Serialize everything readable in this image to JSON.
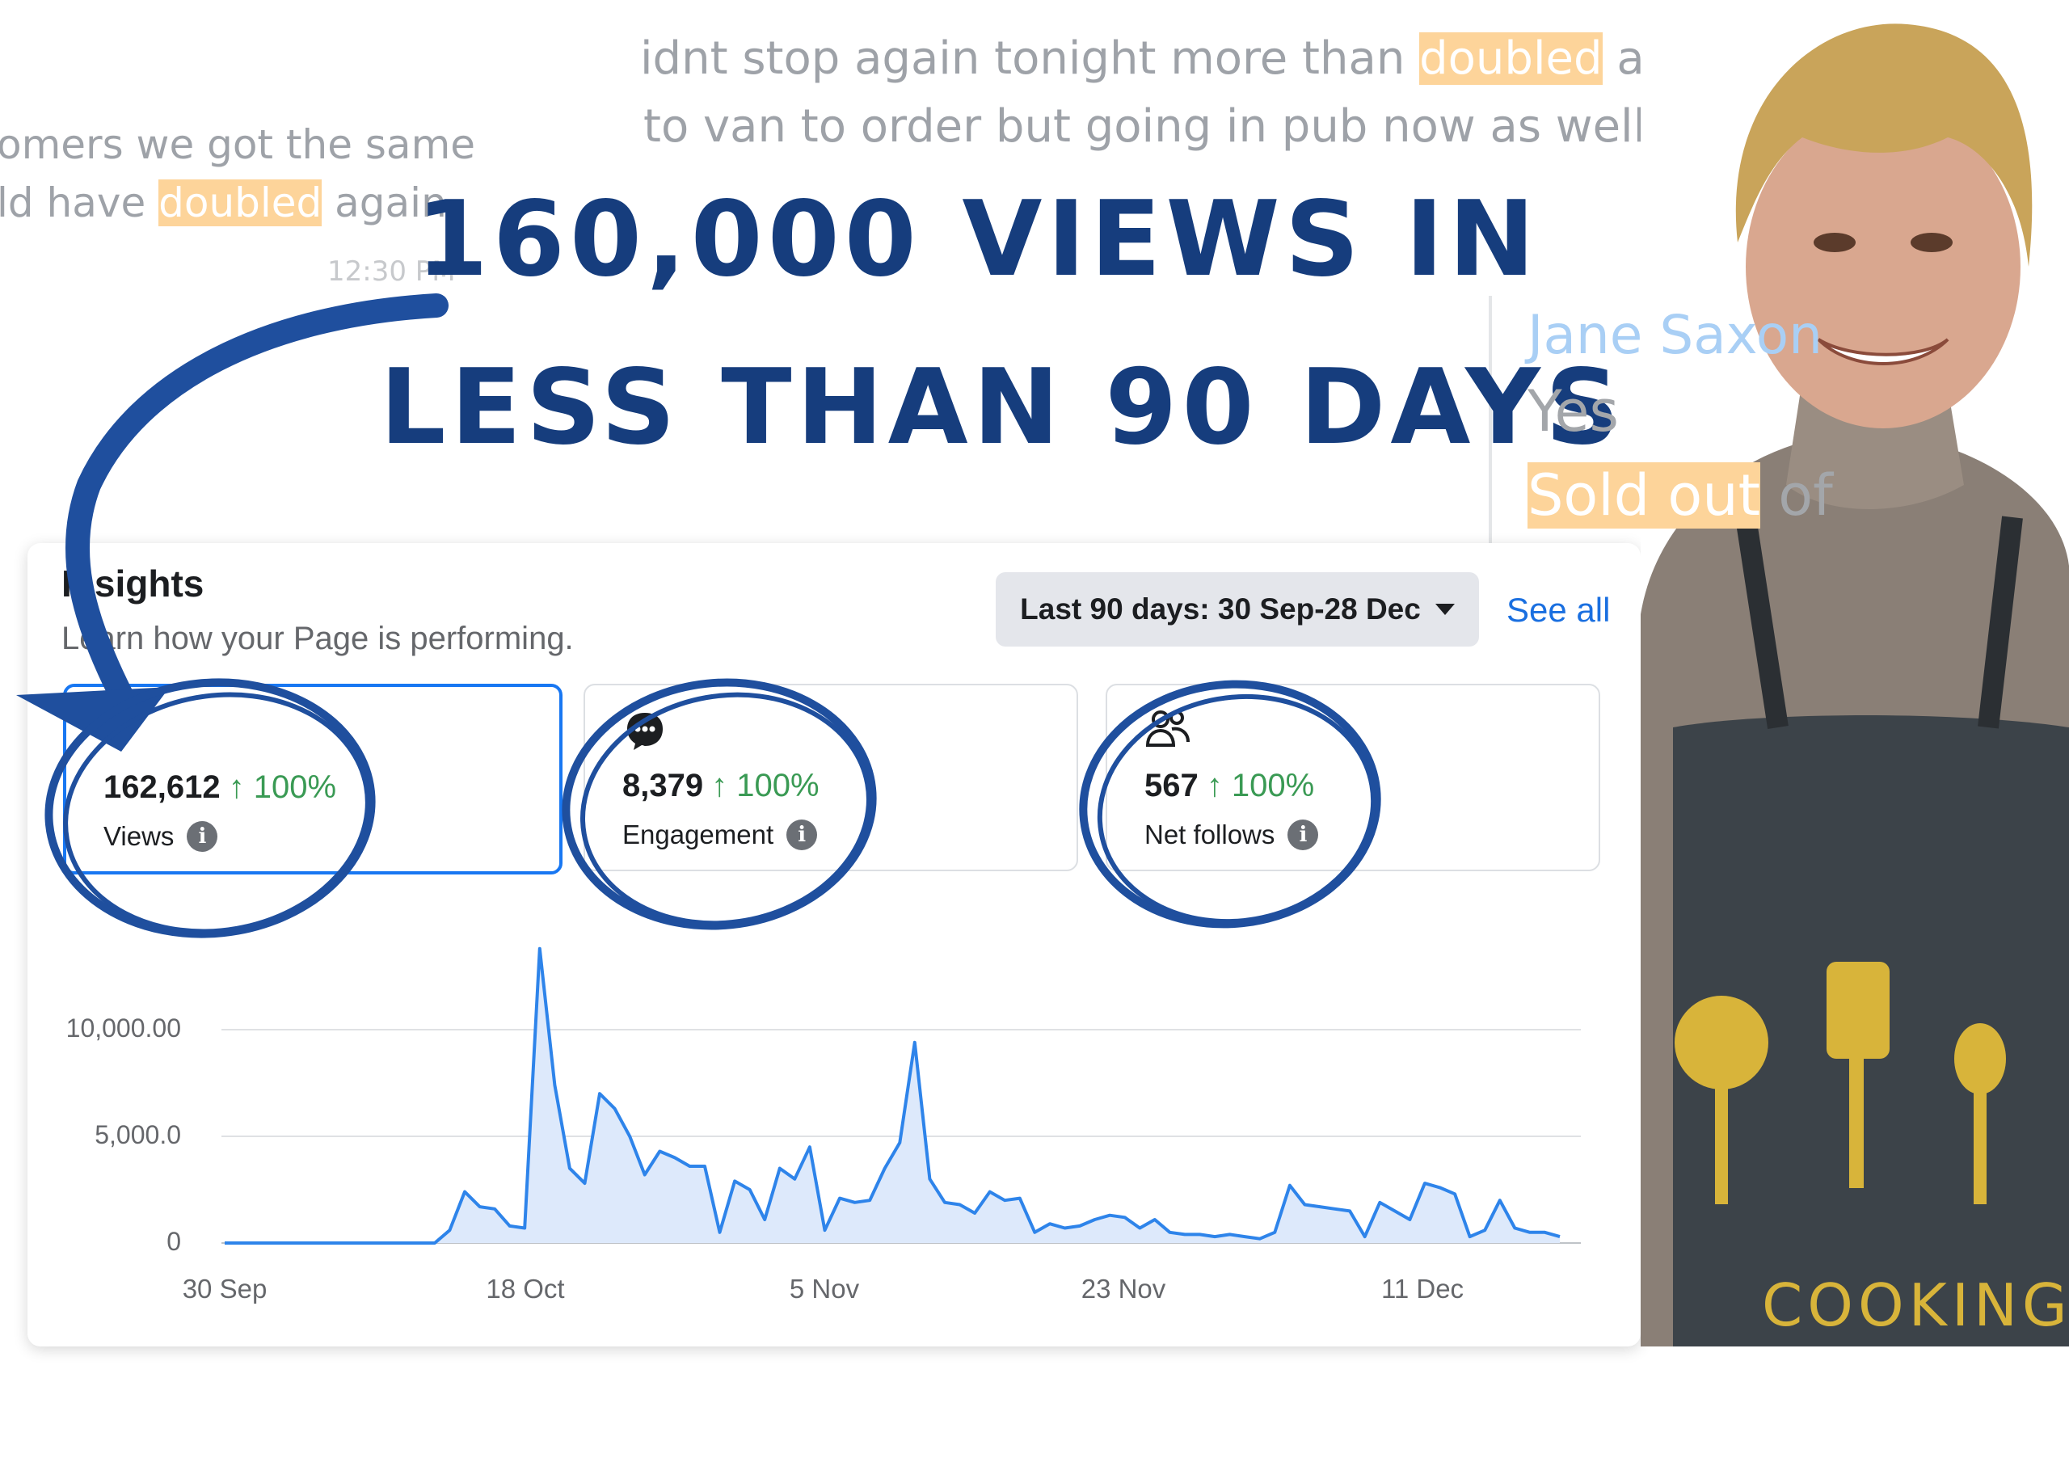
{
  "background_chat": {
    "line1": "idnt stop again tonight more than ",
    "line1_hl": "doubled",
    "line1_end": " again",
    "line2": "to van to order but going in pub now as well",
    "left1": "omers we got the same",
    "left2": "ld have ",
    "left2_hl": "doubled",
    "left2_end": " again",
    "time": "12:30 PM",
    "sender": "Jane Saxon",
    "reply1": "Yes",
    "reply2_hl": "Sold out",
    "reply2_end": " of"
  },
  "headline": {
    "line1": "160,000 VIEWS IN",
    "line2": "LESS THAN 90 DAYS"
  },
  "insights": {
    "title": "Insights",
    "subtitle": "Learn how your Page is performing.",
    "date_range": "Last 90 days: 30 Sep-28 Dec",
    "see_all": "See all",
    "metrics": [
      {
        "value": "162,612",
        "change": "↑ 100%",
        "label": "Views",
        "icon": "views-icon"
      },
      {
        "value": "8,379",
        "change": "↑ 100%",
        "label": "Engagement",
        "icon": "chat-bubble-icon"
      },
      {
        "value": "567",
        "change": "↑ 100%",
        "label": "Net follows",
        "icon": "people-icon"
      }
    ]
  },
  "colors": {
    "headline": "#163d7d",
    "accent_blue": "#1877f2",
    "positive_green": "#3a9a54",
    "highlight": "#fdd49a",
    "scribble": "#1f4f9e"
  },
  "apron_text": "COOKING",
  "chart_data": {
    "type": "area",
    "x_labels": [
      "30 Sep",
      "18 Oct",
      "5 Nov",
      "23 Nov",
      "11 Dec"
    ],
    "y_ticks": [
      "0",
      "5,000.0",
      "10,000.00"
    ],
    "ylim": [
      0,
      14000
    ],
    "series": [
      {
        "values": [
          0,
          0,
          0,
          0,
          0,
          0,
          0,
          0,
          0,
          0,
          0,
          0,
          0,
          0,
          0,
          600,
          2400,
          1700,
          1600,
          800,
          700,
          13800,
          7400,
          3500,
          2800,
          7000,
          6300,
          5000,
          3200,
          4300,
          4000,
          3600,
          3600,
          500,
          2900,
          2500,
          1100,
          3500,
          3000,
          4500,
          600,
          2100,
          1900,
          2000,
          3500,
          4700,
          9400,
          3000,
          1900,
          1800,
          1400,
          2400,
          2000,
          2100,
          500,
          900,
          700,
          800,
          1100,
          1300,
          1200,
          700,
          1100,
          500,
          400,
          400,
          300,
          400,
          300,
          200,
          500,
          2700,
          1800,
          1700,
          1600,
          1500,
          300,
          1900,
          1500,
          1100,
          2800,
          2600,
          2300,
          300,
          600,
          2000,
          700,
          500,
          500,
          300
        ]
      }
    ],
    "grid": true
  }
}
